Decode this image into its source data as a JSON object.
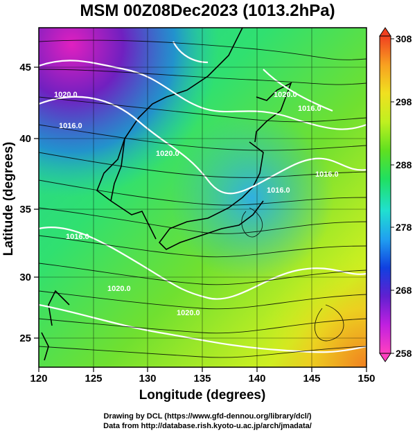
{
  "title": "MSM 00Z08Dec2023 (1013.2hPa)",
  "axes": {
    "xlabel": "Longitude (degrees)",
    "ylabel": "Latitude  (degrees)",
    "xticks": [
      "120",
      "125",
      "130",
      "135",
      "140",
      "145",
      "150"
    ],
    "yticks": [
      "25",
      "30",
      "35",
      "40",
      "45"
    ],
    "xlim": [
      120,
      150
    ],
    "ylim": [
      22.4,
      47.6
    ]
  },
  "colorbar": {
    "ticks": [
      "258",
      "268",
      "278",
      "288",
      "298",
      "308"
    ],
    "range": [
      258,
      308
    ],
    "colors": [
      "#ff40c0",
      "#c020e0",
      "#6020d0",
      "#1040e0",
      "#20a0f0",
      "#20e0d0",
      "#20e060",
      "#60e020",
      "#c0f020",
      "#f0e020",
      "#f8a020",
      "#f04020"
    ]
  },
  "credits": {
    "line1": "Drawing by DCL (https://www.gfd-dennou.org/library/dcl/)",
    "line2": "Data from http://database.rish.kyoto-u.ac.jp/arch/jmadata/"
  },
  "contour_labels": [
    "1020.0",
    "1020.0",
    "1016.0",
    "1016.0",
    "1016.0",
    "1020.0",
    "1016.0",
    "1016.0",
    "1020.0",
    "1020.0"
  ]
}
